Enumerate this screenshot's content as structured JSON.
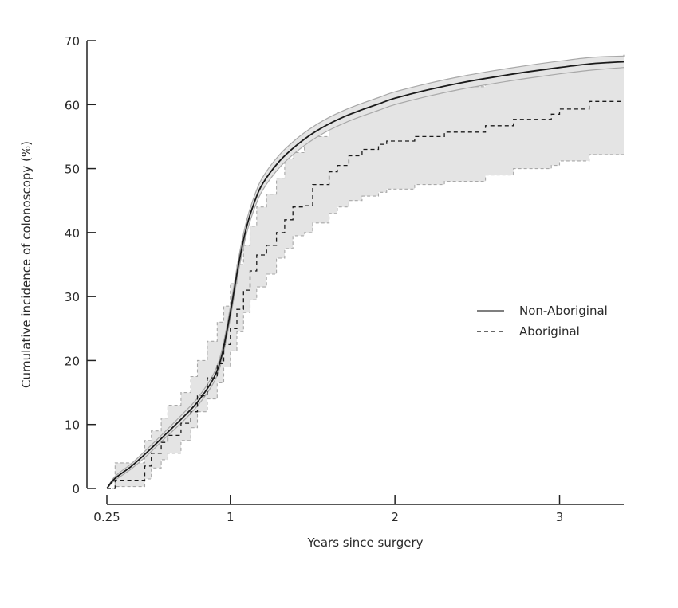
{
  "chart_data": {
    "type": "line",
    "title": "",
    "xlabel": "Years since surgery",
    "ylabel": "Cumulative incidence of colonoscopy (%)",
    "xlim": [
      0.25,
      3.39
    ],
    "ylim": [
      0,
      70
    ],
    "xticks": [
      0.25,
      1,
      2,
      3
    ],
    "xtick_labels": [
      "0.25",
      "1",
      "2",
      "3"
    ],
    "yticks": [
      0,
      10,
      20,
      30,
      40,
      50,
      60,
      70
    ],
    "ytick_labels": [
      "0",
      "10",
      "20",
      "30",
      "40",
      "50",
      "60",
      "70"
    ],
    "grid": false,
    "legend": {
      "placement": "right",
      "entries": [
        {
          "label": "Non-Aboriginal",
          "style": "solid"
        },
        {
          "label": "Aboriginal",
          "style": "dashed"
        }
      ]
    },
    "colors": {
      "line": "#1a1a1a",
      "ci_fill": "#e4e4e4",
      "ci_edge": "#a8a8a8",
      "axis": "#222222"
    },
    "series": [
      {
        "name": "Non-Aboriginal",
        "style": "solid",
        "step": false,
        "x": [
          0.25,
          0.3,
          0.4,
          0.5,
          0.6,
          0.7,
          0.8,
          0.9,
          0.95,
          1.0,
          1.05,
          1.1,
          1.15,
          1.2,
          1.3,
          1.4,
          1.5,
          1.6,
          1.7,
          1.8,
          1.9,
          2.0,
          2.2,
          2.4,
          2.6,
          2.8,
          3.0,
          3.2,
          3.39
        ],
        "y": [
          0,
          1.6,
          3.5,
          5.8,
          8.3,
          10.8,
          13.5,
          17.3,
          21.0,
          27.5,
          35.0,
          41.0,
          45.0,
          47.8,
          51.2,
          53.6,
          55.5,
          57.0,
          58.2,
          59.2,
          60.1,
          61.0,
          62.3,
          63.4,
          64.3,
          65.1,
          65.8,
          66.4,
          66.7
        ],
        "ci_lower": [
          0,
          1.3,
          3.1,
          5.3,
          7.8,
          10.2,
          12.9,
          16.6,
          20.2,
          26.6,
          34.0,
          40.0,
          44.0,
          46.8,
          50.2,
          52.6,
          54.5,
          56.0,
          57.2,
          58.2,
          59.1,
          60.0,
          61.3,
          62.4,
          63.3,
          64.1,
          64.8,
          65.4,
          65.8
        ],
        "ci_upper": [
          0,
          1.9,
          3.9,
          6.3,
          8.8,
          11.4,
          14.1,
          18.0,
          21.8,
          28.4,
          36.0,
          42.0,
          46.0,
          48.8,
          52.2,
          54.6,
          56.5,
          58.0,
          59.2,
          60.2,
          61.1,
          62.0,
          63.3,
          64.4,
          65.3,
          66.1,
          66.8,
          67.4,
          67.6
        ]
      },
      {
        "name": "Aboriginal",
        "style": "dashed",
        "step": true,
        "x": [
          0.25,
          0.3,
          0.48,
          0.52,
          0.58,
          0.62,
          0.7,
          0.76,
          0.8,
          0.86,
          0.92,
          0.96,
          1.0,
          1.04,
          1.08,
          1.12,
          1.16,
          1.22,
          1.28,
          1.33,
          1.38,
          1.45,
          1.5,
          1.6,
          1.65,
          1.72,
          1.8,
          1.9,
          1.95,
          2.12,
          2.3,
          2.55,
          2.72,
          2.95,
          3.0,
          3.18,
          3.39
        ],
        "y": [
          0,
          1.3,
          3.5,
          5.5,
          7.2,
          8.3,
          10.2,
          12.0,
          14.5,
          17.3,
          19.5,
          22.5,
          25.0,
          28.0,
          31.0,
          34.0,
          36.5,
          38.0,
          40.0,
          42.0,
          44.0,
          44.2,
          47.5,
          49.5,
          50.5,
          52.0,
          53.0,
          53.8,
          54.3,
          55.0,
          55.7,
          56.7,
          57.7,
          58.5,
          59.3,
          60.5,
          60.5
        ],
        "ci_lower": [
          0,
          0.3,
          1.5,
          3.2,
          4.5,
          5.5,
          7.5,
          9.5,
          12.0,
          14.0,
          16.5,
          19.0,
          21.5,
          24.5,
          27.5,
          29.5,
          31.5,
          33.5,
          36.0,
          37.5,
          39.5,
          40.0,
          41.5,
          43.0,
          44.0,
          45.0,
          45.7,
          46.3,
          46.8,
          47.5,
          48.0,
          49.0,
          50.0,
          50.5,
          51.2,
          52.2,
          52.2
        ],
        "ci_upper": [
          0,
          4.0,
          7.5,
          9.0,
          11.0,
          13.0,
          15.0,
          17.5,
          20.0,
          23.0,
          26.0,
          28.5,
          32.0,
          35.0,
          38.0,
          41.0,
          44.0,
          46.0,
          48.5,
          51.5,
          52.5,
          55.0,
          55.0,
          57.0,
          58.5,
          59.5,
          60.2,
          60.8,
          61.3,
          62.0,
          62.8,
          63.8,
          64.8,
          65.5,
          66.2,
          67.2,
          67.8
        ]
      }
    ]
  }
}
